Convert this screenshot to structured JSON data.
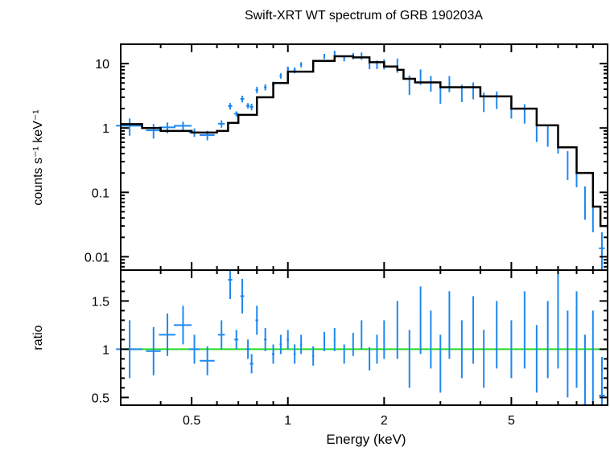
{
  "chart_data": {
    "type": "scatter",
    "title": "Swift-XRT WT spectrum of GRB 190203A",
    "xlabel": "Energy (keV)",
    "xscale": "log",
    "xlim": [
      0.3,
      10
    ],
    "xticks": [
      {
        "v": 0.5,
        "label": "0.5"
      },
      {
        "v": 1,
        "label": "1"
      },
      {
        "v": 2,
        "label": "2"
      },
      {
        "v": 5,
        "label": "5"
      }
    ],
    "top_panel": {
      "ylabel": "counts s⁻¹ keV⁻¹",
      "yscale": "log",
      "ylim": [
        0.0062,
        20
      ],
      "yticks": [
        {
          "v": 10,
          "label": "10"
        },
        {
          "v": 1,
          "label": "1"
        },
        {
          "v": 0.1,
          "label": "0.1"
        },
        {
          "v": 0.01,
          "label": "0.01"
        }
      ]
    },
    "bottom_panel": {
      "ylabel": "ratio",
      "ylim": [
        0.42,
        1.82
      ],
      "yticks": [
        {
          "v": 1.5,
          "label": "1.5"
        },
        {
          "v": 1,
          "label": "1"
        },
        {
          "v": 0.5,
          "label": "0.5"
        }
      ],
      "reference_line": 1
    },
    "colors": {
      "data": "#1e88f0",
      "model": "#000000",
      "reference": "#22dd22"
    },
    "model": [
      [
        0.3,
        1.15
      ],
      [
        0.35,
        1.0
      ],
      [
        0.4,
        0.9
      ],
      [
        0.5,
        0.85
      ],
      [
        0.6,
        0.9
      ],
      [
        0.65,
        1.2
      ],
      [
        0.7,
        1.6
      ],
      [
        0.8,
        3.0
      ],
      [
        0.9,
        5.0
      ],
      [
        1.0,
        7.5
      ],
      [
        1.2,
        11
      ],
      [
        1.4,
        13
      ],
      [
        1.6,
        12.5
      ],
      [
        1.8,
        10.5
      ],
      [
        2.0,
        9.0
      ],
      [
        2.2,
        8.0
      ],
      [
        2.3,
        5.8
      ],
      [
        2.5,
        5.1
      ],
      [
        3.0,
        4.3
      ],
      [
        4.0,
        3.1
      ],
      [
        5.0,
        2.0
      ],
      [
        6.0,
        1.1
      ],
      [
        7.0,
        0.5
      ],
      [
        8.0,
        0.2
      ],
      [
        9.0,
        0.06
      ],
      [
        9.5,
        0.03
      ],
      [
        10,
        0.015
      ]
    ],
    "data_points": [
      {
        "e": 0.32,
        "de": 0.03,
        "r": 1.0,
        "err": 0.3
      },
      {
        "e": 0.38,
        "de": 0.02,
        "r": 0.98,
        "err": 0.25
      },
      {
        "e": 0.42,
        "de": 0.025,
        "r": 1.15,
        "err": 0.22
      },
      {
        "e": 0.47,
        "de": 0.03,
        "r": 1.25,
        "err": 0.2
      },
      {
        "e": 0.51,
        "de": 0.02,
        "r": 1.0,
        "err": 0.15
      },
      {
        "e": 0.56,
        "de": 0.03,
        "r": 0.88,
        "err": 0.15
      },
      {
        "e": 0.62,
        "de": 0.015,
        "r": 1.15,
        "err": 0.15
      },
      {
        "e": 0.66,
        "de": 0.01,
        "r": 1.72,
        "err": 0.2
      },
      {
        "e": 0.69,
        "de": 0.01,
        "r": 1.1,
        "err": 0.1
      },
      {
        "e": 0.72,
        "de": 0.01,
        "r": 1.55,
        "err": 0.18
      },
      {
        "e": 0.75,
        "de": 0.01,
        "r": 1.0,
        "err": 0.1
      },
      {
        "e": 0.77,
        "de": 0.01,
        "r": 0.85,
        "err": 0.1
      },
      {
        "e": 0.8,
        "de": 0.008,
        "r": 1.3,
        "err": 0.15
      },
      {
        "e": 0.85,
        "de": 0.008,
        "r": 1.1,
        "err": 0.12
      },
      {
        "e": 0.9,
        "de": 0.008,
        "r": 0.95,
        "err": 0.1
      },
      {
        "e": 0.95,
        "de": 0.008,
        "r": 1.05,
        "err": 0.1
      },
      {
        "e": 1.0,
        "de": 0.008,
        "r": 1.1,
        "err": 0.1
      },
      {
        "e": 1.05,
        "de": 0.008,
        "r": 0.95,
        "err": 0.1
      },
      {
        "e": 1.1,
        "de": 0.008,
        "r": 1.05,
        "err": 0.1
      },
      {
        "e": 1.2,
        "de": 0.008,
        "r": 0.93,
        "err": 0.1
      },
      {
        "e": 1.3,
        "de": 0.008,
        "r": 1.08,
        "err": 0.1
      },
      {
        "e": 1.4,
        "de": 0.008,
        "r": 1.1,
        "err": 0.12
      },
      {
        "e": 1.5,
        "de": 0.008,
        "r": 0.95,
        "err": 0.1
      },
      {
        "e": 1.6,
        "de": 0.008,
        "r": 1.05,
        "err": 0.12
      },
      {
        "e": 1.7,
        "de": 0.008,
        "r": 1.15,
        "err": 0.15
      },
      {
        "e": 1.8,
        "de": 0.008,
        "r": 0.9,
        "err": 0.12
      },
      {
        "e": 1.9,
        "de": 0.008,
        "r": 1.0,
        "err": 0.15
      },
      {
        "e": 2.0,
        "de": 0.01,
        "r": 1.1,
        "err": 0.2
      },
      {
        "e": 2.2,
        "de": 0.01,
        "r": 1.2,
        "err": 0.3
      },
      {
        "e": 2.4,
        "de": 0.01,
        "r": 0.9,
        "err": 0.3
      },
      {
        "e": 2.6,
        "de": 0.01,
        "r": 1.3,
        "err": 0.35
      },
      {
        "e": 2.8,
        "de": 0.01,
        "r": 1.1,
        "err": 0.3
      },
      {
        "e": 3.0,
        "de": 0.01,
        "r": 0.85,
        "err": 0.3
      },
      {
        "e": 3.2,
        "de": 0.01,
        "r": 1.25,
        "err": 0.35
      },
      {
        "e": 3.5,
        "de": 0.01,
        "r": 1.0,
        "err": 0.3
      },
      {
        "e": 3.8,
        "de": 0.01,
        "r": 1.2,
        "err": 0.35
      },
      {
        "e": 4.1,
        "de": 0.01,
        "r": 0.9,
        "err": 0.3
      },
      {
        "e": 4.5,
        "de": 0.01,
        "r": 1.15,
        "err": 0.35
      },
      {
        "e": 5.0,
        "de": 0.01,
        "r": 1.0,
        "err": 0.3
      },
      {
        "e": 5.5,
        "de": 0.01,
        "r": 1.2,
        "err": 0.4
      },
      {
        "e": 6.0,
        "de": 0.01,
        "r": 0.9,
        "err": 0.35
      },
      {
        "e": 6.5,
        "de": 0.01,
        "r": 1.1,
        "err": 0.4
      },
      {
        "e": 7.0,
        "de": 0.01,
        "r": 1.3,
        "err": 0.5
      },
      {
        "e": 7.5,
        "de": 0.01,
        "r": 0.95,
        "err": 0.45
      },
      {
        "e": 8.0,
        "de": 0.01,
        "r": 1.1,
        "err": 0.5
      },
      {
        "e": 8.5,
        "de": 0.01,
        "r": 0.75,
        "err": 0.4
      },
      {
        "e": 9.0,
        "de": 0.05,
        "r": 0.9,
        "err": 0.5
      },
      {
        "e": 9.6,
        "de": 0.2,
        "r": 0.52,
        "err": 0.4
      }
    ]
  }
}
